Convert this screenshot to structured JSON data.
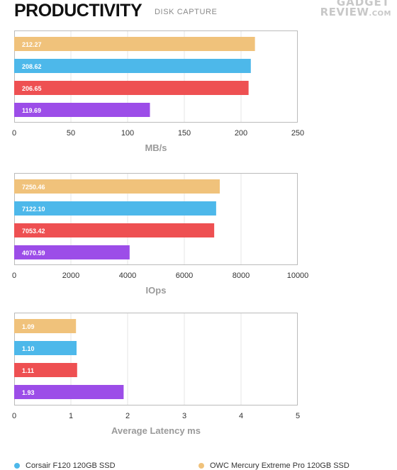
{
  "header": {
    "title": "PRODUCTIVITY",
    "subtitle": "DISK CAPTURE",
    "logo_line1": "GADGET",
    "logo_line2": "REVIEW",
    "logo_suffix": ".COM"
  },
  "colors": {
    "owc": "#F0C27B",
    "corsair": "#4DB8EA",
    "red": "#EE5052",
    "purple": "#9C4DE8",
    "grid": "#e6e6e6",
    "frame": "#bbbbbb"
  },
  "chart_data": [
    {
      "type": "bar",
      "orientation": "horizontal",
      "title": "",
      "xlabel": "MB/s",
      "xlim": [
        0,
        250
      ],
      "xticks": [
        "0",
        "50",
        "100",
        "150",
        "200",
        "250"
      ],
      "bars": [
        {
          "value": 212.27,
          "label": "212.27",
          "color": "#F0C27B"
        },
        {
          "value": 208.62,
          "label": "208.62",
          "color": "#4DB8EA"
        },
        {
          "value": 206.65,
          "label": "206.65",
          "color": "#EE5052"
        },
        {
          "value": 119.69,
          "label": "119.69",
          "color": "#9C4DE8"
        }
      ]
    },
    {
      "type": "bar",
      "orientation": "horizontal",
      "title": "",
      "xlabel": "IOps",
      "xlim": [
        0,
        10000
      ],
      "xticks": [
        "0",
        "2000",
        "4000",
        "6000",
        "8000",
        "10000"
      ],
      "bars": [
        {
          "value": 7250.46,
          "label": "7250.46",
          "color": "#F0C27B"
        },
        {
          "value": 7122.1,
          "label": "7122.10",
          "color": "#4DB8EA"
        },
        {
          "value": 7053.42,
          "label": "7053.42",
          "color": "#EE5052"
        },
        {
          "value": 4070.59,
          "label": "4070.59",
          "color": "#9C4DE8"
        }
      ]
    },
    {
      "type": "bar",
      "orientation": "horizontal",
      "title": "",
      "xlabel": "Average Latency ms",
      "xlim": [
        0,
        5
      ],
      "xticks": [
        "0",
        "1",
        "2",
        "3",
        "4",
        "5"
      ],
      "bars": [
        {
          "value": 1.09,
          "label": "1.09",
          "color": "#F0C27B"
        },
        {
          "value": 1.1,
          "label": "1.10",
          "color": "#4DB8EA"
        },
        {
          "value": 1.11,
          "label": "1.11",
          "color": "#EE5052"
        },
        {
          "value": 1.93,
          "label": "1.93",
          "color": "#9C4DE8"
        }
      ]
    }
  ],
  "legend": [
    {
      "name": "Corsair F120 120GB SSD",
      "color": "#4DB8EA"
    },
    {
      "name": "OWC Mercury Extreme Pro 120GB SSD",
      "color": "#F0C27B"
    }
  ]
}
